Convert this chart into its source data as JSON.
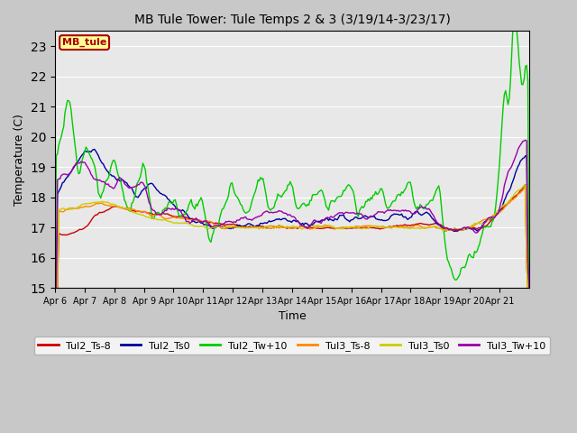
{
  "title": "MB Tule Tower: Tule Temps 2 & 3 (3/19/14-3/23/17)",
  "xlabel": "Time",
  "ylabel": "Temperature (C)",
  "ylim": [
    15.0,
    23.5
  ],
  "yticks": [
    15.0,
    16.0,
    17.0,
    18.0,
    19.0,
    20.0,
    21.0,
    22.0,
    23.0
  ],
  "x_labels": [
    "Apr 6",
    "Apr 7",
    "Apr 8",
    "Apr 9",
    "Apr 10",
    "Apr 11",
    "Apr 12",
    "Apr 13",
    "Apr 14",
    "Apr 15",
    "Apr 16",
    "Apr 17",
    "Apr 18",
    "Apr 19",
    "Apr 20",
    "Apr 21"
  ],
  "fig_bg": "#c8c8c8",
  "plot_bg": "#e8e8e8",
  "legend_label": "MB_tule",
  "legend_box_facecolor": "#ffff99",
  "legend_box_edgecolor": "#aa0000",
  "series": {
    "Tul2_Ts-8": {
      "color": "#cc0000",
      "lw": 1.0
    },
    "Tul2_Ts0": {
      "color": "#000099",
      "lw": 1.0
    },
    "Tul2_Tw+10": {
      "color": "#00cc00",
      "lw": 1.0
    },
    "Tul3_Ts-8": {
      "color": "#ff8800",
      "lw": 1.0
    },
    "Tul3_Ts0": {
      "color": "#cccc00",
      "lw": 1.0
    },
    "Tul3_Tw+10": {
      "color": "#9900aa",
      "lw": 1.0
    }
  }
}
